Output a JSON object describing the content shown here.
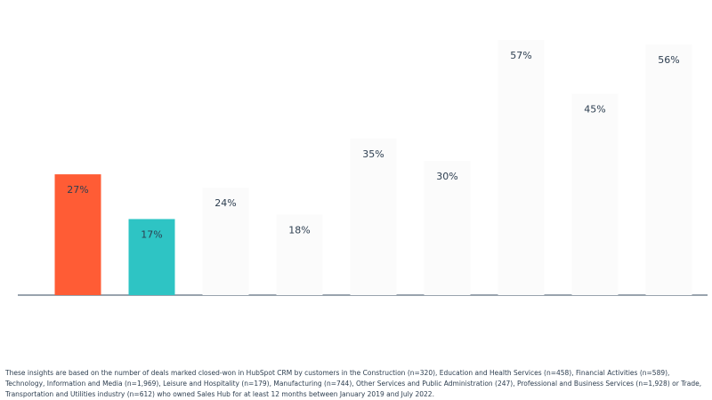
{
  "chart_data": {
    "type": "bar",
    "categories": [
      null,
      null,
      null,
      null,
      null,
      null,
      null,
      null,
      null
    ],
    "values": [
      27,
      17,
      24,
      18,
      35,
      30,
      57,
      45,
      56
    ],
    "value_labels": [
      "27%",
      "17%",
      "24%",
      "18%",
      "35%",
      "30%",
      "57%",
      "45%",
      "56%"
    ],
    "colors": [
      "#ff5c35",
      "#2ec4c4",
      "#fbfbfb",
      "#fbfbfb",
      "#fbfbfb",
      "#fbfbfb",
      "#fbfbfb",
      "#fbfbfb",
      "#fbfbfb"
    ],
    "ylim": [
      0,
      60
    ]
  },
  "footnote": "These insights are based on the number of deals marked closed-won in HubSpot CRM by customers in the Construction (n=320), Education and Health Services (n=458), Financial Activities (n=589), Technology, Information and Media (n=1,969),  Leisure and Hospitality (n=179), Manufacturing (n=744), Other Services and Public Administration (247), Professional and Business Services (n=1,928) or Trade, Transportation and Utilities industry (n=612) who owned Sales Hub for at least 12 months between January 2019 and July 2022."
}
